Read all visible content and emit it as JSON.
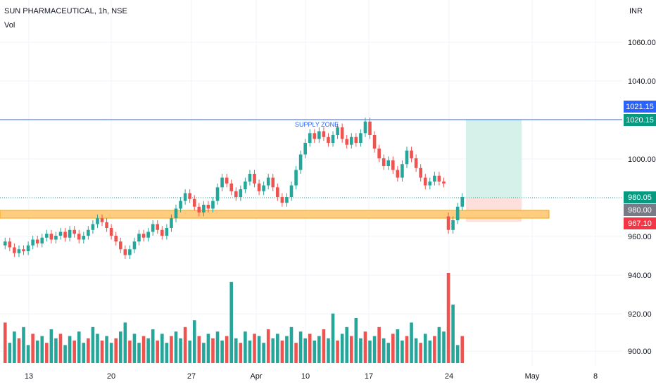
{
  "header": {
    "symbol_line": "SUN PHARMACEUTICAL, 1h, NSE",
    "volume_label": "Vol",
    "currency": "INR"
  },
  "annotation": {
    "supply_zone_label": "SUPPLY ZONE"
  },
  "price_tags": {
    "upper_line_blue": {
      "text": "1021.15",
      "color": "#2962ff"
    },
    "upper_line_green": {
      "text": "1020.15",
      "color": "#089981"
    },
    "last_green": {
      "text": "980.05",
      "color": "#089981"
    },
    "last_gray": {
      "text": "980.00",
      "color": "#787b86"
    },
    "stop_red": {
      "text": "967.10",
      "color": "#f23645"
    }
  },
  "colors": {
    "up": "#26a69a",
    "down": "#ef5350",
    "vol_up": "#26a69a",
    "vol_down": "#ef5350",
    "hline": "#2962ff",
    "demand_zone_fill": "#ffcc80",
    "demand_zone_border": "#f7a600",
    "target_fill": "#d6f1e9",
    "stop_fill": "#fde0dc",
    "grid": "#f0f3fa"
  },
  "chart_data": {
    "type": "candlestick",
    "title": "SUN PHARMACEUTICAL, 1h, NSE",
    "y_axis": {
      "ticks": [
        "1060.00",
        "1040.00",
        "1000.00",
        "980.00",
        "960.00",
        "940.00",
        "920.00",
        "900.00"
      ],
      "tick_values": [
        1060,
        1040,
        1000,
        980,
        960,
        940,
        920,
        900
      ],
      "unit": "INR"
    },
    "x_axis": {
      "ticks": [
        "13",
        "20",
        "27",
        "Apr",
        "10",
        "17",
        "24",
        "May",
        "8"
      ]
    },
    "price_series": [
      {
        "o": 955,
        "c": 957
      },
      {
        "o": 957,
        "c": 954
      },
      {
        "o": 954,
        "c": 951
      },
      {
        "o": 951,
        "c": 953
      },
      {
        "o": 953,
        "c": 952
      },
      {
        "o": 952,
        "c": 955
      },
      {
        "o": 955,
        "c": 958
      },
      {
        "o": 958,
        "c": 956
      },
      {
        "o": 956,
        "c": 959
      },
      {
        "o": 959,
        "c": 961
      },
      {
        "o": 961,
        "c": 958
      },
      {
        "o": 958,
        "c": 960
      },
      {
        "o": 960,
        "c": 962
      },
      {
        "o": 962,
        "c": 959
      },
      {
        "o": 959,
        "c": 963
      },
      {
        "o": 963,
        "c": 961
      },
      {
        "o": 961,
        "c": 958
      },
      {
        "o": 958,
        "c": 960
      },
      {
        "o": 960,
        "c": 963
      },
      {
        "o": 963,
        "c": 966
      },
      {
        "o": 966,
        "c": 969
      },
      {
        "o": 969,
        "c": 967
      },
      {
        "o": 967,
        "c": 964
      },
      {
        "o": 964,
        "c": 960
      },
      {
        "o": 960,
        "c": 957
      },
      {
        "o": 957,
        "c": 953
      },
      {
        "o": 953,
        "c": 950
      },
      {
        "o": 950,
        "c": 953
      },
      {
        "o": 953,
        "c": 957
      },
      {
        "o": 957,
        "c": 961
      },
      {
        "o": 961,
        "c": 959
      },
      {
        "o": 959,
        "c": 962
      },
      {
        "o": 962,
        "c": 966
      },
      {
        "o": 966,
        "c": 963
      },
      {
        "o": 963,
        "c": 960
      },
      {
        "o": 960,
        "c": 964
      },
      {
        "o": 964,
        "c": 969
      },
      {
        "o": 969,
        "c": 974
      },
      {
        "o": 974,
        "c": 978
      },
      {
        "o": 978,
        "c": 982
      },
      {
        "o": 982,
        "c": 979
      },
      {
        "o": 979,
        "c": 975
      },
      {
        "o": 975,
        "c": 972
      },
      {
        "o": 972,
        "c": 976
      },
      {
        "o": 976,
        "c": 974
      },
      {
        "o": 974,
        "c": 978
      },
      {
        "o": 978,
        "c": 985
      },
      {
        "o": 985,
        "c": 990
      },
      {
        "o": 990,
        "c": 987
      },
      {
        "o": 987,
        "c": 983
      },
      {
        "o": 983,
        "c": 980
      },
      {
        "o": 980,
        "c": 984
      },
      {
        "o": 984,
        "c": 988
      },
      {
        "o": 988,
        "c": 992
      },
      {
        "o": 992,
        "c": 987
      },
      {
        "o": 987,
        "c": 983
      },
      {
        "o": 983,
        "c": 986
      },
      {
        "o": 986,
        "c": 990
      },
      {
        "o": 990,
        "c": 985
      },
      {
        "o": 985,
        "c": 980
      },
      {
        "o": 980,
        "c": 977
      },
      {
        "o": 977,
        "c": 980
      },
      {
        "o": 980,
        "c": 986
      },
      {
        "o": 986,
        "c": 994
      },
      {
        "o": 994,
        "c": 1002
      },
      {
        "o": 1002,
        "c": 1008
      },
      {
        "o": 1008,
        "c": 1013
      },
      {
        "o": 1013,
        "c": 1010
      },
      {
        "o": 1010,
        "c": 1014
      },
      {
        "o": 1014,
        "c": 1011
      },
      {
        "o": 1011,
        "c": 1008
      },
      {
        "o": 1008,
        "c": 1012
      },
      {
        "o": 1012,
        "c": 1016
      },
      {
        "o": 1016,
        "c": 1010
      },
      {
        "o": 1010,
        "c": 1007
      },
      {
        "o": 1007,
        "c": 1011
      },
      {
        "o": 1011,
        "c": 1008
      },
      {
        "o": 1008,
        "c": 1013
      },
      {
        "o": 1013,
        "c": 1019
      },
      {
        "o": 1019,
        "c": 1012
      },
      {
        "o": 1012,
        "c": 1005
      },
      {
        "o": 1005,
        "c": 1000
      },
      {
        "o": 1000,
        "c": 996
      },
      {
        "o": 996,
        "c": 999
      },
      {
        "o": 999,
        "c": 994
      },
      {
        "o": 994,
        "c": 990
      },
      {
        "o": 990,
        "c": 997
      },
      {
        "o": 997,
        "c": 1004
      },
      {
        "o": 1004,
        "c": 1000
      },
      {
        "o": 1000,
        "c": 995
      },
      {
        "o": 995,
        "c": 990
      },
      {
        "o": 990,
        "c": 986
      },
      {
        "o": 986,
        "c": 988
      },
      {
        "o": 988,
        "c": 991
      },
      {
        "o": 991,
        "c": 988
      },
      {
        "o": 988,
        "c": 987
      },
      {
        "o": 970,
        "c": 963
      },
      {
        "o": 963,
        "c": 968
      },
      {
        "o": 968,
        "c": 975
      },
      {
        "o": 975,
        "c": 980
      }
    ],
    "volume_series": [
      18,
      9,
      14,
      11,
      16,
      8,
      13,
      10,
      12,
      9,
      15,
      11,
      13,
      8,
      12,
      10,
      14,
      9,
      11,
      16,
      13,
      10,
      12,
      9,
      11,
      14,
      18,
      10,
      13,
      9,
      12,
      11,
      15,
      10,
      13,
      9,
      12,
      14,
      11,
      16,
      10,
      19,
      12,
      9,
      13,
      11,
      14,
      10,
      12,
      36,
      11,
      9,
      14,
      10,
      13,
      12,
      9,
      15,
      11,
      13,
      10,
      12,
      16,
      9,
      14,
      11,
      13,
      10,
      12,
      15,
      11,
      22,
      10,
      13,
      16,
      12,
      20,
      11,
      14,
      10,
      12,
      16,
      11,
      9,
      13,
      15,
      10,
      12,
      18,
      11,
      9,
      13,
      10,
      12,
      16,
      14,
      40,
      26,
      8,
      12
    ],
    "horizontal_levels": {
      "supply": 1020.15,
      "last_price": 980.05,
      "demand_zone": [
        970,
        973
      ],
      "stop": 967.1,
      "target": 1021.15
    },
    "grid": true
  }
}
